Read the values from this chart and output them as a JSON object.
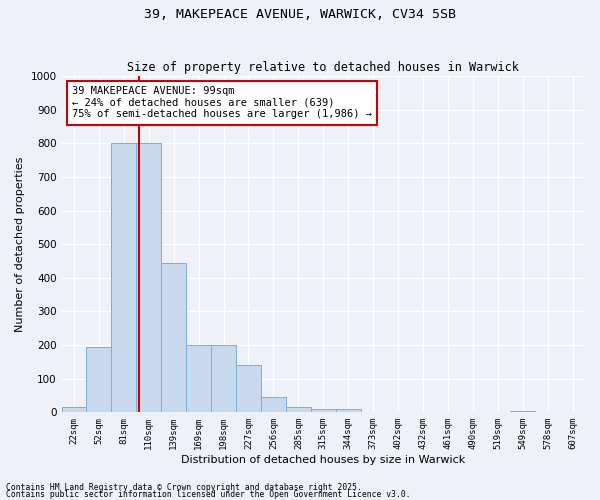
{
  "title_line1": "39, MAKEPEACE AVENUE, WARWICK, CV34 5SB",
  "title_line2": "Size of property relative to detached houses in Warwick",
  "xlabel": "Distribution of detached houses by size in Warwick",
  "ylabel": "Number of detached properties",
  "categories": [
    "22sqm",
    "52sqm",
    "81sqm",
    "110sqm",
    "139sqm",
    "169sqm",
    "198sqm",
    "227sqm",
    "256sqm",
    "285sqm",
    "315sqm",
    "344sqm",
    "373sqm",
    "402sqm",
    "432sqm",
    "461sqm",
    "490sqm",
    "519sqm",
    "549sqm",
    "578sqm",
    "607sqm"
  ],
  "values": [
    15,
    195,
    800,
    800,
    445,
    200,
    200,
    140,
    45,
    15,
    10,
    10,
    0,
    0,
    0,
    0,
    0,
    0,
    5,
    0,
    0
  ],
  "bar_color": "#c9d9ed",
  "bar_edge_color": "#7bafd4",
  "vline_color": "#cc0000",
  "annotation_text": "39 MAKEPEACE AVENUE: 99sqm\n← 24% of detached houses are smaller (639)\n75% of semi-detached houses are larger (1,986) →",
  "annotation_box_edgecolor": "#cc0000",
  "annotation_box_facecolor": "#ffffff",
  "ylim": [
    0,
    1000
  ],
  "footnote_line1": "Contains HM Land Registry data © Crown copyright and database right 2025.",
  "footnote_line2": "Contains public sector information licensed under the Open Government Licence v3.0.",
  "bg_color": "#eef2f8",
  "grid_color": "#ffffff"
}
